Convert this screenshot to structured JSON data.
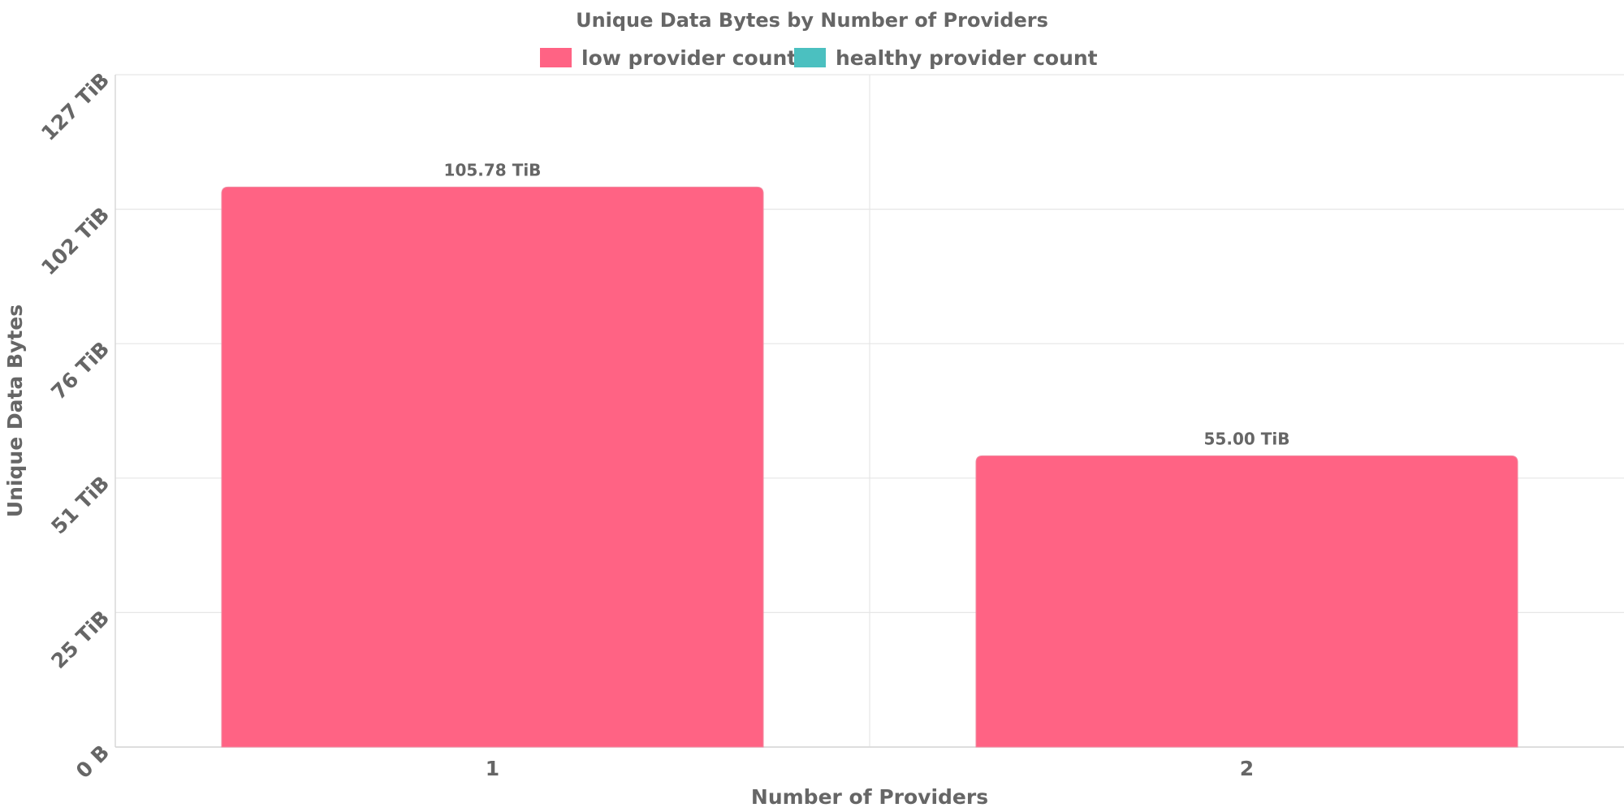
{
  "chart_data": {
    "type": "bar",
    "title": "Unique Data Bytes by Number of Providers",
    "xlabel": "Number of Providers",
    "ylabel": "Unique Data Bytes",
    "categories": [
      "1",
      "2"
    ],
    "series": [
      {
        "name": "low provider count",
        "color": "#ff6384",
        "values": [
          105.78,
          55.0
        ],
        "data_labels": [
          "105.78 TiB",
          "55.00 TiB"
        ]
      },
      {
        "name": "healthy provider count",
        "color": "#4bc0c0",
        "values": [
          null,
          null
        ],
        "data_labels": []
      }
    ],
    "unit": "TiB",
    "ylim": [
      0,
      127
    ],
    "y_ticks": [
      {
        "value": 0,
        "label": "0 B"
      },
      {
        "value": 25.4,
        "label": "25 TiB"
      },
      {
        "value": 50.8,
        "label": "51 TiB"
      },
      {
        "value": 76.2,
        "label": "76 TiB"
      },
      {
        "value": 101.6,
        "label": "102 TiB"
      },
      {
        "value": 127,
        "label": "127 TiB"
      }
    ],
    "grid": true,
    "legend_position": "top-center"
  }
}
